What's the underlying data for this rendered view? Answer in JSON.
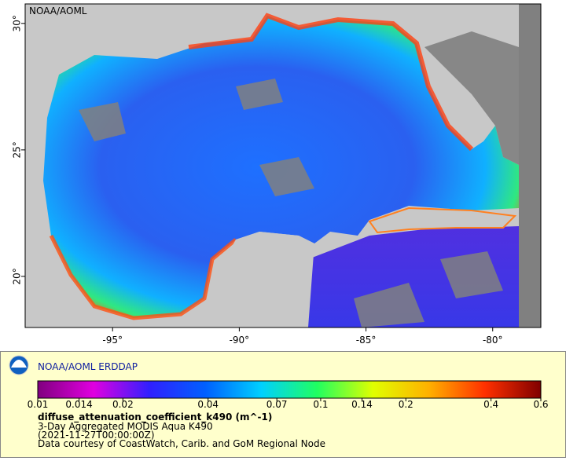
{
  "map": {
    "watermark": "NOAA/AOML",
    "xlim": [
      -98.45,
      -78.1
    ],
    "xticks": [
      {
        "value": -95,
        "label": "-95°"
      },
      {
        "value": -90,
        "label": "-90°"
      },
      {
        "value": -85,
        "label": "-85°"
      },
      {
        "value": -80,
        "label": "-80°"
      }
    ],
    "ylim": [
      17.98,
      30.77
    ],
    "yticks": [
      {
        "value": 20,
        "label": "20°"
      },
      {
        "value": 25,
        "label": "25°"
      },
      {
        "value": 30,
        "label": "30°"
      }
    ]
  },
  "legend": {
    "title": "NOAA/AOML ERDDAP",
    "scale": "log",
    "range": [
      0.01,
      0.6
    ],
    "ticks": [
      0.01,
      0.014,
      0.02,
      0.04,
      0.07,
      0.1,
      0.14,
      0.2,
      0.4,
      0.6
    ],
    "colormap": [
      "#80007f",
      "#e000e0",
      "#3020ff",
      "#0060ff",
      "#00d0ff",
      "#20ff60",
      "#e0ff00",
      "#ffb000",
      "#ff3000",
      "#800000"
    ],
    "variable": "diffuse_attenuation_coefficient_k490 (m^-1)",
    "lines": [
      "3-Day Aggregated MODIS Aqua K490",
      "(2021-11-27T00:00:00Z)",
      "Data courtesy of CoastWatch, Carib. and GoM Regional Node"
    ]
  }
}
